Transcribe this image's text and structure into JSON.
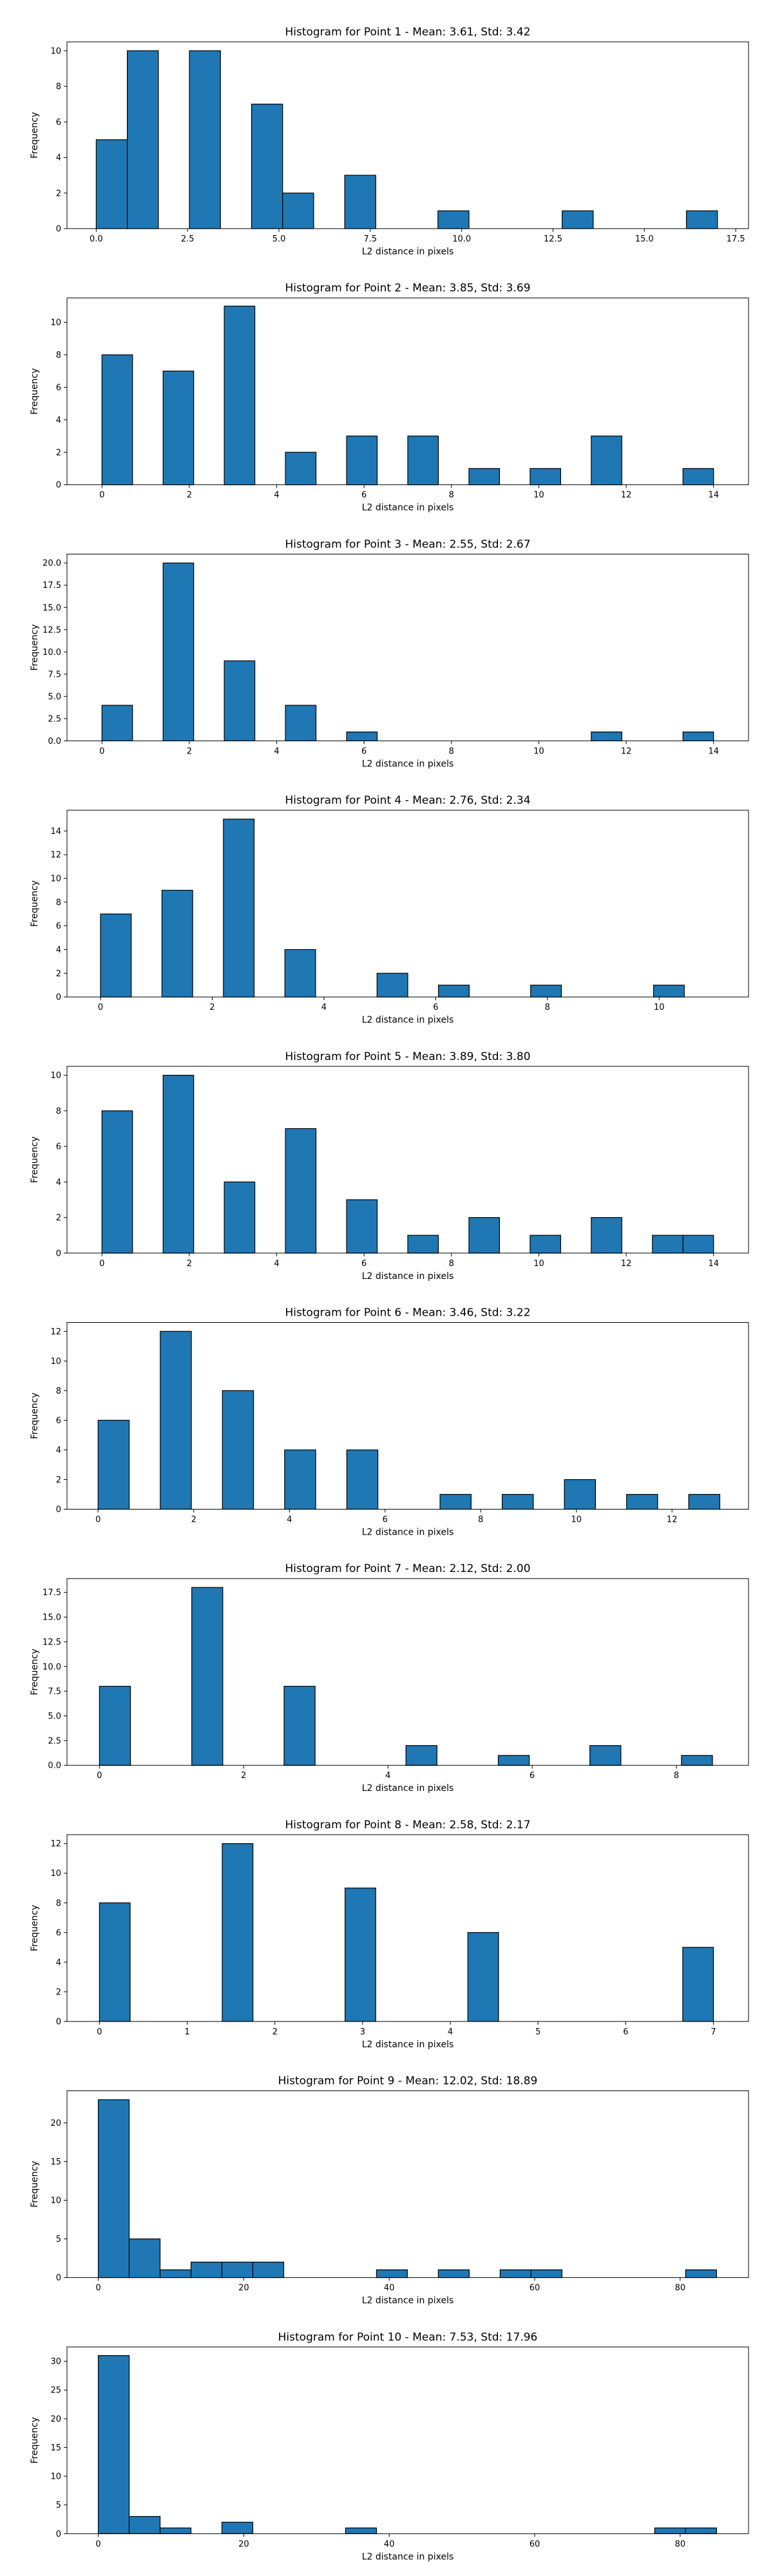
{
  "chart_data": [
    {
      "type": "bar",
      "title": "Histogram for Point 1 - Mean: 3.61, Std: 3.42",
      "xlabel": "L2 distance in pixels",
      "ylabel": "Frequency",
      "xlim": [
        -0.8,
        17.85
      ],
      "ylim": [
        0,
        10.5
      ],
      "xticks": [
        0,
        2.5,
        5,
        7.5,
        10,
        12.5,
        15,
        17.5
      ],
      "xtick_labels": [
        "0.0",
        "2.5",
        "5.0",
        "7.5",
        "10.0",
        "12.5",
        "15.0",
        "17.5"
      ],
      "yticks": [
        0,
        2,
        4,
        6,
        8,
        10
      ],
      "ytick_labels": [
        "0",
        "2",
        "4",
        "6",
        "8",
        "10"
      ],
      "bins": [
        [
          0.0,
          0.85,
          5
        ],
        [
          0.85,
          1.7,
          10
        ],
        [
          2.55,
          3.4,
          10
        ],
        [
          4.25,
          5.1,
          7
        ],
        [
          5.1,
          5.95,
          2
        ],
        [
          6.8,
          7.65,
          3
        ],
        [
          9.35,
          10.2,
          1
        ],
        [
          12.75,
          13.6,
          1
        ],
        [
          16.15,
          17.0,
          1
        ]
      ]
    },
    {
      "type": "bar",
      "title": "Histogram for Point 2 - Mean: 3.85, Std: 3.69",
      "xlabel": "L2 distance in pixels",
      "ylabel": "Frequency",
      "xlim": [
        -0.8,
        14.8
      ],
      "ylim": [
        0,
        11.5
      ],
      "xticks": [
        0,
        2,
        4,
        6,
        8,
        10,
        12,
        14
      ],
      "xtick_labels": [
        "0",
        "2",
        "4",
        "6",
        "8",
        "10",
        "12",
        "14"
      ],
      "yticks": [
        0,
        2,
        4,
        6,
        8,
        10
      ],
      "ytick_labels": [
        "0",
        "2",
        "4",
        "6",
        "8",
        "10"
      ],
      "bins": [
        [
          0.0,
          0.7,
          8
        ],
        [
          1.4,
          2.1,
          7
        ],
        [
          2.8,
          3.5,
          11
        ],
        [
          4.2,
          4.9,
          2
        ],
        [
          5.6,
          6.3,
          3
        ],
        [
          7.0,
          7.7,
          3
        ],
        [
          8.4,
          9.1,
          1
        ],
        [
          9.8,
          10.5,
          1
        ],
        [
          11.2,
          11.9,
          3
        ],
        [
          13.3,
          14.0,
          1
        ]
      ]
    },
    {
      "type": "bar",
      "title": "Histogram for Point 3 - Mean: 2.55, Std: 2.67",
      "xlabel": "L2 distance in pixels",
      "ylabel": "Frequency",
      "xlim": [
        -0.8,
        14.8
      ],
      "ylim": [
        0,
        21
      ],
      "xticks": [
        0,
        2,
        4,
        6,
        8,
        10,
        12,
        14
      ],
      "xtick_labels": [
        "0",
        "2",
        "4",
        "6",
        "8",
        "10",
        "12",
        "14"
      ],
      "yticks": [
        0,
        2.5,
        5,
        7.5,
        10,
        12.5,
        15,
        17.5,
        20
      ],
      "ytick_labels": [
        "0.0",
        "2.5",
        "5.0",
        "7.5",
        "10.0",
        "12.5",
        "15.0",
        "17.5",
        "20.0"
      ],
      "bins": [
        [
          0.0,
          0.7,
          4
        ],
        [
          1.4,
          2.1,
          20
        ],
        [
          2.8,
          3.5,
          9
        ],
        [
          4.2,
          4.9,
          4
        ],
        [
          5.6,
          6.3,
          1
        ],
        [
          11.2,
          11.9,
          1
        ],
        [
          13.3,
          14.0,
          1
        ]
      ]
    },
    {
      "type": "bar",
      "title": "Histogram for Point 4 - Mean: 2.76, Std: 2.34",
      "xlabel": "L2 distance in pixels",
      "ylabel": "Frequency",
      "xlim": [
        -0.6,
        11.6
      ],
      "ylim": [
        0,
        15.75
      ],
      "xticks": [
        0,
        2,
        4,
        6,
        8,
        10
      ],
      "xtick_labels": [
        "0",
        "2",
        "4",
        "6",
        "8",
        "10"
      ],
      "yticks": [
        0,
        2,
        4,
        6,
        8,
        10,
        12,
        14
      ],
      "ytick_labels": [
        "0",
        "2",
        "4",
        "6",
        "8",
        "10",
        "12",
        "14"
      ],
      "bins": [
        [
          0.0,
          0.55,
          7
        ],
        [
          1.1,
          1.65,
          9
        ],
        [
          2.2,
          2.75,
          15
        ],
        [
          3.3,
          3.85,
          4
        ],
        [
          4.95,
          5.5,
          2
        ],
        [
          6.05,
          6.6,
          1
        ],
        [
          7.7,
          8.25,
          1
        ],
        [
          9.9,
          10.45,
          1
        ]
      ]
    },
    {
      "type": "bar",
      "title": "Histogram for Point 5 - Mean: 3.89, Std: 3.80",
      "xlabel": "L2 distance in pixels",
      "ylabel": "Frequency",
      "xlim": [
        -0.8,
        14.8
      ],
      "ylim": [
        0,
        10.5
      ],
      "xticks": [
        0,
        2,
        4,
        6,
        8,
        10,
        12,
        14
      ],
      "xtick_labels": [
        "0",
        "2",
        "4",
        "6",
        "8",
        "10",
        "12",
        "14"
      ],
      "yticks": [
        0,
        2,
        4,
        6,
        8,
        10
      ],
      "ytick_labels": [
        "0",
        "2",
        "4",
        "6",
        "8",
        "10"
      ],
      "bins": [
        [
          0.0,
          0.7,
          8
        ],
        [
          1.4,
          2.1,
          10
        ],
        [
          2.8,
          3.5,
          4
        ],
        [
          4.2,
          4.9,
          7
        ],
        [
          5.6,
          6.3,
          3
        ],
        [
          7.0,
          7.7,
          1
        ],
        [
          8.4,
          9.1,
          2
        ],
        [
          9.8,
          10.5,
          1
        ],
        [
          11.2,
          11.9,
          2
        ],
        [
          12.6,
          13.3,
          1
        ],
        [
          13.3,
          14.0,
          1
        ]
      ]
    },
    {
      "type": "bar",
      "title": "Histogram for Point 6 - Mean: 3.46, Std: 3.22",
      "xlabel": "L2 distance in pixels",
      "ylabel": "Frequency",
      "xlim": [
        -0.65,
        13.6
      ],
      "ylim": [
        0,
        12.6
      ],
      "xticks": [
        0,
        2,
        4,
        6,
        8,
        10,
        12
      ],
      "xtick_labels": [
        "0",
        "2",
        "4",
        "6",
        "8",
        "10",
        "12"
      ],
      "yticks": [
        0,
        2,
        4,
        6,
        8,
        10,
        12
      ],
      "ytick_labels": [
        "0",
        "2",
        "4",
        "6",
        "8",
        "10",
        "12"
      ],
      "bins": [
        [
          0.0,
          0.65,
          6
        ],
        [
          1.3,
          1.95,
          12
        ],
        [
          2.6,
          3.25,
          8
        ],
        [
          3.9,
          4.55,
          4
        ],
        [
          5.2,
          5.85,
          4
        ],
        [
          7.15,
          7.8,
          1
        ],
        [
          8.45,
          9.1,
          1
        ],
        [
          9.75,
          10.4,
          2
        ],
        [
          11.05,
          11.7,
          1
        ],
        [
          12.35,
          13.0,
          1
        ]
      ]
    },
    {
      "type": "bar",
      "title": "Histogram for Point 7 - Mean: 2.12, Std: 2.00",
      "xlabel": "L2 distance in pixels",
      "ylabel": "Frequency",
      "xlim": [
        -0.45,
        9.0
      ],
      "ylim": [
        0,
        18.9
      ],
      "xticks": [
        0,
        2,
        4,
        6,
        8
      ],
      "xtick_labels": [
        "0",
        "2",
        "4",
        "6",
        "8"
      ],
      "yticks": [
        0,
        2.5,
        5,
        7.5,
        10,
        12.5,
        15,
        17.5
      ],
      "ytick_labels": [
        "0.0",
        "2.5",
        "5.0",
        "7.5",
        "10.0",
        "12.5",
        "15.0",
        "17.5"
      ],
      "bins": [
        [
          0.0,
          0.43,
          8
        ],
        [
          1.28,
          1.71,
          18
        ],
        [
          2.56,
          2.99,
          8
        ],
        [
          4.25,
          4.68,
          2
        ],
        [
          5.53,
          5.96,
          1
        ],
        [
          6.8,
          7.23,
          2
        ],
        [
          8.07,
          8.5,
          1
        ]
      ]
    },
    {
      "type": "bar",
      "title": "Histogram for Point 8 - Mean: 2.58, Std: 2.17",
      "xlabel": "L2 distance in pixels",
      "ylabel": "Frequency",
      "xlim": [
        -0.37,
        7.4
      ],
      "ylim": [
        0,
        12.6
      ],
      "xticks": [
        0,
        1,
        2,
        3,
        4,
        5,
        6,
        7
      ],
      "xtick_labels": [
        "0",
        "1",
        "2",
        "3",
        "4",
        "5",
        "6",
        "7"
      ],
      "yticks": [
        0,
        2,
        4,
        6,
        8,
        10,
        12
      ],
      "ytick_labels": [
        "0",
        "2",
        "4",
        "6",
        "8",
        "10",
        "12"
      ],
      "bins": [
        [
          0.0,
          0.35,
          8
        ],
        [
          1.4,
          1.75,
          12
        ],
        [
          2.8,
          3.15,
          9
        ],
        [
          4.2,
          4.55,
          6
        ],
        [
          6.65,
          7.0,
          5
        ]
      ]
    },
    {
      "type": "bar",
      "title": "Histogram for Point 9 - Mean: 12.02, Std: 18.89",
      "xlabel": "L2 distance in pixels",
      "ylabel": "Frequency",
      "xlim": [
        -4.3,
        89.4
      ],
      "ylim": [
        0,
        24.15
      ],
      "xticks": [
        0,
        20,
        40,
        60,
        80
      ],
      "xtick_labels": [
        "0",
        "20",
        "40",
        "60",
        "80"
      ],
      "yticks": [
        0,
        5,
        10,
        15,
        20
      ],
      "ytick_labels": [
        "0",
        "5",
        "10",
        "15",
        "20"
      ],
      "bins": [
        [
          0.0,
          4.25,
          23
        ],
        [
          4.25,
          8.5,
          5
        ],
        [
          8.5,
          12.75,
          1
        ],
        [
          12.75,
          17.0,
          2
        ],
        [
          17.0,
          21.25,
          2
        ],
        [
          21.25,
          25.5,
          2
        ],
        [
          38.25,
          42.5,
          1
        ],
        [
          46.75,
          51.0,
          1
        ],
        [
          55.25,
          59.5,
          1
        ],
        [
          59.5,
          63.75,
          1
        ],
        [
          80.75,
          85.0,
          1
        ]
      ]
    },
    {
      "type": "bar",
      "title": "Histogram for Point 10 - Mean: 7.53, Std: 17.96",
      "xlabel": "L2 distance in pixels",
      "ylabel": "Frequency",
      "xlim": [
        -4.3,
        89.4
      ],
      "ylim": [
        0,
        32.5
      ],
      "xticks": [
        0,
        20,
        40,
        60,
        80
      ],
      "xtick_labels": [
        "0",
        "20",
        "40",
        "60",
        "80"
      ],
      "yticks": [
        0,
        5,
        10,
        15,
        20,
        25,
        30
      ],
      "ytick_labels": [
        "0",
        "5",
        "10",
        "15",
        "20",
        "25",
        "30"
      ],
      "bins": [
        [
          0.0,
          4.25,
          31
        ],
        [
          4.25,
          8.5,
          3
        ],
        [
          8.5,
          12.75,
          1
        ],
        [
          17.0,
          21.25,
          2
        ],
        [
          34.0,
          38.25,
          1
        ],
        [
          76.5,
          80.75,
          1
        ],
        [
          80.75,
          85.0,
          1
        ]
      ]
    }
  ]
}
